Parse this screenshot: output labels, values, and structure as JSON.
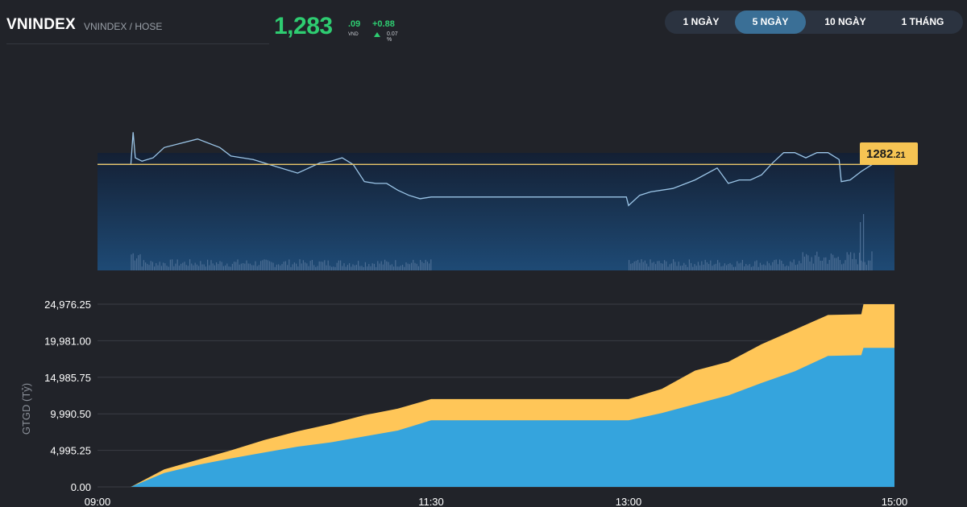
{
  "header": {
    "symbol": "VNINDEX",
    "subtitle": "VNINDEX / HOSE",
    "price_int": "1,283",
    "price_dec": ".09",
    "currency": "VND",
    "change": "+0.88",
    "change_pct": "0.07 %"
  },
  "tabs": [
    {
      "label": "1 NGÀY",
      "active": false
    },
    {
      "label": "5 NGÀY",
      "active": true
    },
    {
      "label": "10 NGÀY",
      "active": false
    },
    {
      "label": "1 THÁNG",
      "active": false
    }
  ],
  "colors": {
    "up": "#2ecc71",
    "price_line": "#9cc6e8",
    "reference_line": "#e8c56a",
    "area_blue": "#35a4dd",
    "area_yellow": "#ffc658",
    "marker_bg": "#f6c453"
  },
  "chart_data": [
    {
      "type": "line",
      "description_series": "intraday index",
      "reference": {
        "int": "1282",
        "dec": ".21",
        "value": 1282.21
      },
      "y_range": [
        1279.3,
        1286.0
      ],
      "price": {
        "x": [
          "09:00",
          "09:15",
          "09:16",
          "09:17",
          "09:20",
          "09:25",
          "09:30",
          "09:45",
          "09:55",
          "10:00",
          "10:10",
          "10:20",
          "10:30",
          "10:40",
          "10:45",
          "10:50",
          "10:55",
          "11:00",
          "11:05",
          "11:10",
          "11:15",
          "11:20",
          "11:25",
          "11:30",
          "12:59",
          "13:00",
          "13:05",
          "13:10",
          "13:20",
          "13:30",
          "13:40",
          "13:45",
          "13:50",
          "13:55",
          "14:00",
          "14:05",
          "14:10",
          "14:15",
          "14:20",
          "14:25",
          "14:30",
          "14:35",
          "14:36",
          "14:40",
          "14:45",
          "14:50"
        ],
        "y": [
          1282.21,
          1282.21,
          1284.1,
          1282.6,
          1282.4,
          1282.6,
          1283.2,
          1283.7,
          1283.2,
          1282.7,
          1282.5,
          1282.1,
          1281.7,
          1282.3,
          1282.4,
          1282.6,
          1282.2,
          1281.2,
          1281.1,
          1281.1,
          1280.7,
          1280.4,
          1280.2,
          1280.3,
          1280.3,
          1279.8,
          1280.4,
          1280.6,
          1280.8,
          1281.3,
          1282.0,
          1281.1,
          1281.3,
          1281.3,
          1281.6,
          1282.3,
          1282.9,
          1282.9,
          1282.6,
          1282.9,
          1282.9,
          1282.5,
          1281.2,
          1281.3,
          1281.8,
          1282.21
        ]
      },
      "volume": {
        "x_start": "09:15",
        "x_end": "14:50",
        "lunch_break": [
          "11:30",
          "13:00"
        ]
      }
    },
    {
      "type": "area",
      "ylabel": "GTGD (Tỷ)",
      "ylim": [
        0,
        24976.25
      ],
      "y_ticks": [
        "24,976.25",
        "19,981.00",
        "14,985.75",
        "9,990.50",
        "4,995.25",
        "0.00"
      ],
      "x_ticks": [
        "09:00",
        "11:30",
        "13:00",
        "15:00"
      ],
      "x": [
        "09:00",
        "09:15",
        "09:30",
        "09:45",
        "10:00",
        "10:15",
        "10:30",
        "10:45",
        "11:00",
        "11:15",
        "11:30",
        "13:00",
        "13:15",
        "13:30",
        "13:45",
        "14:00",
        "14:15",
        "14:30",
        "14:45",
        "14:46",
        "15:00"
      ],
      "series": [
        {
          "color": "blue",
          "values": [
            0,
            0,
            1900,
            3000,
            3900,
            4700,
            5500,
            6100,
            6900,
            7700,
            9100,
            9100,
            10100,
            11300,
            12500,
            14200,
            15800,
            17900,
            18000,
            19000,
            19000
          ]
        },
        {
          "color": "yellow",
          "values": [
            0,
            0,
            2400,
            3700,
            5000,
            6400,
            7600,
            8600,
            9800,
            10700,
            12000,
            12000,
            13400,
            15900,
            17100,
            19500,
            21500,
            23500,
            23600,
            24976.25,
            24976.25
          ]
        }
      ]
    }
  ]
}
